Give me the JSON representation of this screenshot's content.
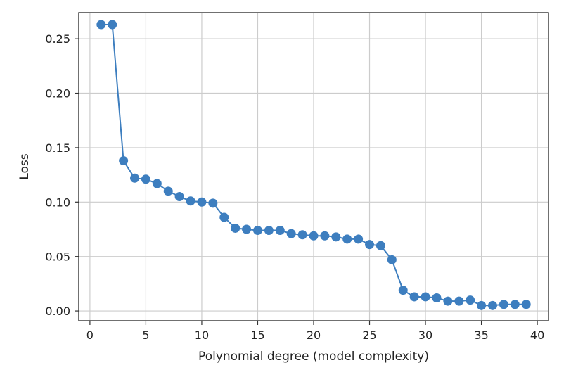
{
  "chart_data": {
    "type": "line",
    "title": "",
    "xlabel": "Polynomial degree (model complexity)",
    "ylabel": "Loss",
    "xlim": [
      -1,
      41
    ],
    "ylim": [
      -0.009,
      0.274
    ],
    "grid": true,
    "xticks": [
      0,
      5,
      10,
      15,
      20,
      25,
      30,
      35,
      40
    ],
    "xtick_labels": [
      "0",
      "5",
      "10",
      "15",
      "20",
      "25",
      "30",
      "35",
      "40"
    ],
    "yticks": [
      0.0,
      0.05,
      0.1,
      0.15,
      0.2,
      0.25
    ],
    "ytick_labels": [
      "0.00",
      "0.05",
      "0.10",
      "0.15",
      "0.20",
      "0.25"
    ],
    "series": [
      {
        "color": "#3d7ebf",
        "marker": "circle",
        "x": [
          1,
          2,
          3,
          4,
          5,
          6,
          7,
          8,
          9,
          10,
          11,
          12,
          13,
          14,
          15,
          16,
          17,
          18,
          19,
          20,
          21,
          22,
          23,
          24,
          25,
          26,
          27,
          28,
          29,
          30,
          31,
          32,
          33,
          34,
          35,
          36,
          37,
          38,
          39
        ],
        "values": [
          0.263,
          0.263,
          0.138,
          0.122,
          0.121,
          0.117,
          0.11,
          0.105,
          0.101,
          0.1,
          0.099,
          0.086,
          0.076,
          0.075,
          0.074,
          0.074,
          0.074,
          0.071,
          0.07,
          0.069,
          0.069,
          0.068,
          0.066,
          0.066,
          0.061,
          0.06,
          0.047,
          0.019,
          0.013,
          0.013,
          0.012,
          0.009,
          0.009,
          0.01,
          0.005,
          0.005,
          0.006,
          0.006,
          0.006
        ]
      }
    ]
  }
}
